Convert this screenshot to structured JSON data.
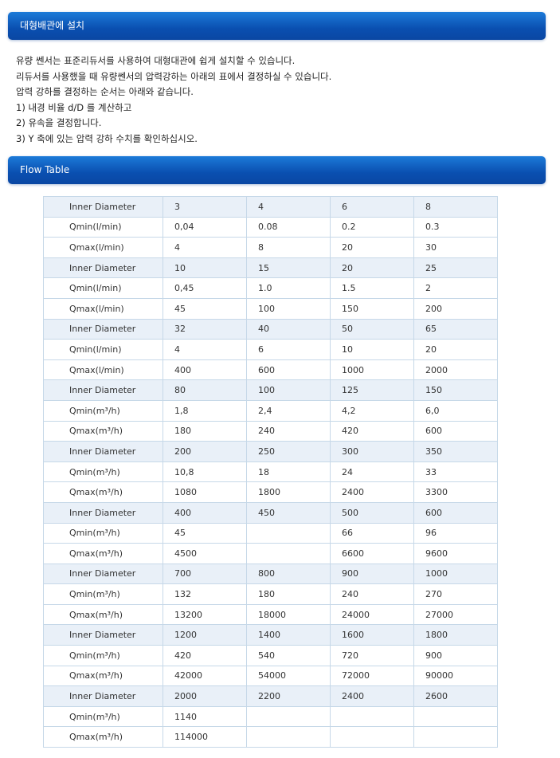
{
  "section1": {
    "title": "대형배관에 설치"
  },
  "intro": [
    "유량 쎈서는 표준리듀서를 사용하여 대형대관에 쉽게 설치할 수 있습니다.",
    "리듀서를 사용했을 때 유량쎈서의 압력강하는 아래의 표에서 결정하실 수 있습니다.",
    "압력 강하를 결정하는 순서는 아래와 같습니다.",
    "1) 내경 비율 d/D 를 계산하고",
    "2) 유속을 결정합니다.",
    "3) Y 축에 있는 압력 강하 수치를 확인하십시오."
  ],
  "section2": {
    "title": "Flow Table"
  },
  "table": {
    "rows": [
      [
        "Inner Diameter",
        "3",
        "4",
        "6",
        "8"
      ],
      [
        "Qmin(l/min)",
        "0,04",
        "0.08",
        "0.2",
        "0.3"
      ],
      [
        "Qmax(l/min)",
        "4",
        "8",
        "20",
        "30"
      ],
      [
        "Inner Diameter",
        "10",
        "15",
        "20",
        "25"
      ],
      [
        "Qmin(l/min)",
        "0,45",
        "1.0",
        "1.5",
        "2"
      ],
      [
        "Qmax(l/min)",
        "45",
        "100",
        "150",
        "200"
      ],
      [
        "Inner Diameter",
        "32",
        "40",
        "50",
        "65"
      ],
      [
        "Qmin(l/min)",
        "4",
        "6",
        "10",
        "20"
      ],
      [
        "Qmax(l/min)",
        "400",
        "600",
        "1000",
        "2000"
      ],
      [
        "Inner Diameter",
        "80",
        "100",
        "125",
        "150"
      ],
      [
        "Qmin(m³/h)",
        "1,8",
        "2,4",
        "4,2",
        "6,0"
      ],
      [
        "Qmax(m³/h)",
        "180",
        "240",
        "420",
        "600"
      ],
      [
        "Inner Diameter",
        "200",
        "250",
        "300",
        "350"
      ],
      [
        "Qmin(m³/h)",
        "10,8",
        "18",
        "24",
        "33"
      ],
      [
        "Qmax(m³/h)",
        "1080",
        "1800",
        "2400",
        "3300"
      ],
      [
        "Inner Diameter",
        "400",
        "450",
        "500",
        "600"
      ],
      [
        "Qmin(m³/h)",
        "45",
        "",
        "66",
        "96"
      ],
      [
        "Qmax(m³/h)",
        "4500",
        "",
        "6600",
        "9600"
      ],
      [
        "Inner Diameter",
        "700",
        "800",
        "900",
        "1000"
      ],
      [
        "Qmin(m³/h)",
        "132",
        "180",
        "240",
        "270"
      ],
      [
        "Qmax(m³/h)",
        "13200",
        "18000",
        "24000",
        "27000"
      ],
      [
        "Inner Diameter",
        "1200",
        "1400",
        "1600",
        "1800"
      ],
      [
        "Qmin(m³/h)",
        "420",
        "540",
        "720",
        "900"
      ],
      [
        "Qmax(m³/h)",
        "42000",
        "54000",
        "72000",
        "90000"
      ],
      [
        "Inner Diameter",
        "2000",
        "2200",
        "2400",
        "2600"
      ],
      [
        "Qmin(m³/h)",
        "1140",
        "",
        "",
        ""
      ],
      [
        "Qmax(m³/h)",
        "114000",
        "",
        "",
        ""
      ]
    ]
  }
}
